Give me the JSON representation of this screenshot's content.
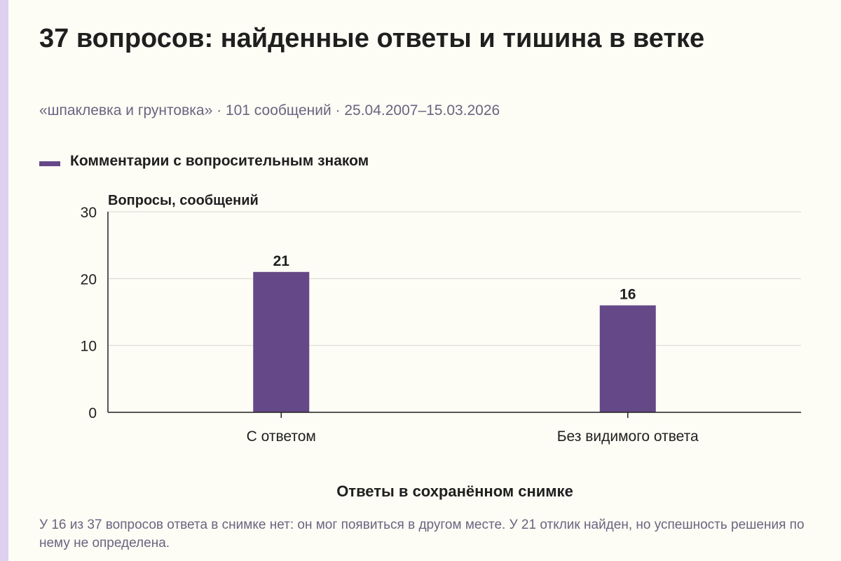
{
  "header": {
    "title": "37 вопросов: найденные ответы и тишина в ветке",
    "subtitle": "«шпаклевка и грунтовка» · 101 сообщений · 25.04.2007–15.03.2026"
  },
  "colors": {
    "bar": "#654887",
    "accent_strip": "#ddd0f0",
    "muted_text": "#6c6480",
    "text": "#1f1f1f",
    "grid": "#d8d6d0",
    "axis": "#222222"
  },
  "chart_data": {
    "type": "bar",
    "categories": [
      "С ответом",
      "Без видимого ответа"
    ],
    "series": [
      {
        "name": "Комментарии с вопросительным знаком",
        "values": [
          21,
          16
        ]
      }
    ],
    "data_labels": [
      "21",
      "16"
    ],
    "ylabel": "Вопросы, сообщений",
    "xlabel": "Ответы в сохранённом снимке",
    "ylim": [
      0,
      30
    ],
    "yticks": [
      0,
      10,
      20,
      30
    ],
    "grid": true,
    "legend_position": "top-left"
  },
  "note": "У 16 из 37 вопросов ответа в снимке нет: он мог появиться в другом месте. У 21 отклик найден, но успешность решения по нему не определена."
}
